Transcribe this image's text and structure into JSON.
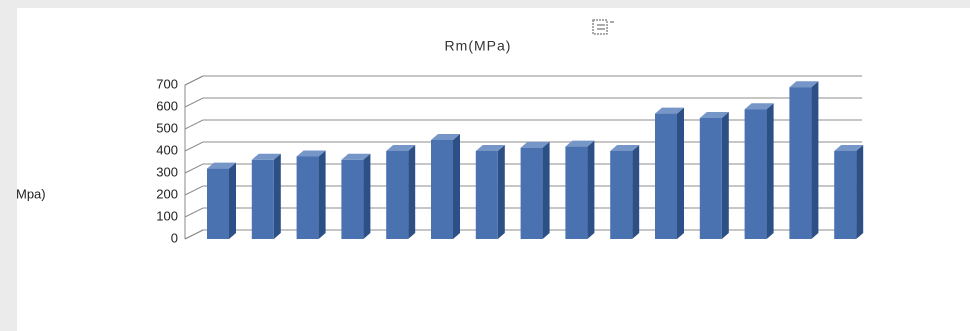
{
  "chart_data": {
    "type": "bar3d",
    "title": "Rm(MPa)",
    "y_label": "Mpa)",
    "categories": [
      null,
      null,
      null,
      null,
      null,
      null,
      null,
      null,
      null,
      null,
      null,
      null,
      null,
      null,
      null
    ],
    "values": [
      320,
      360,
      375,
      360,
      400,
      450,
      400,
      415,
      420,
      400,
      570,
      550,
      590,
      690,
      400
    ],
    "color": "#4a72b0",
    "ylim": [
      0,
      700
    ],
    "yticks": [
      0,
      100,
      200,
      300,
      400,
      500,
      600,
      700
    ],
    "grid": true
  }
}
